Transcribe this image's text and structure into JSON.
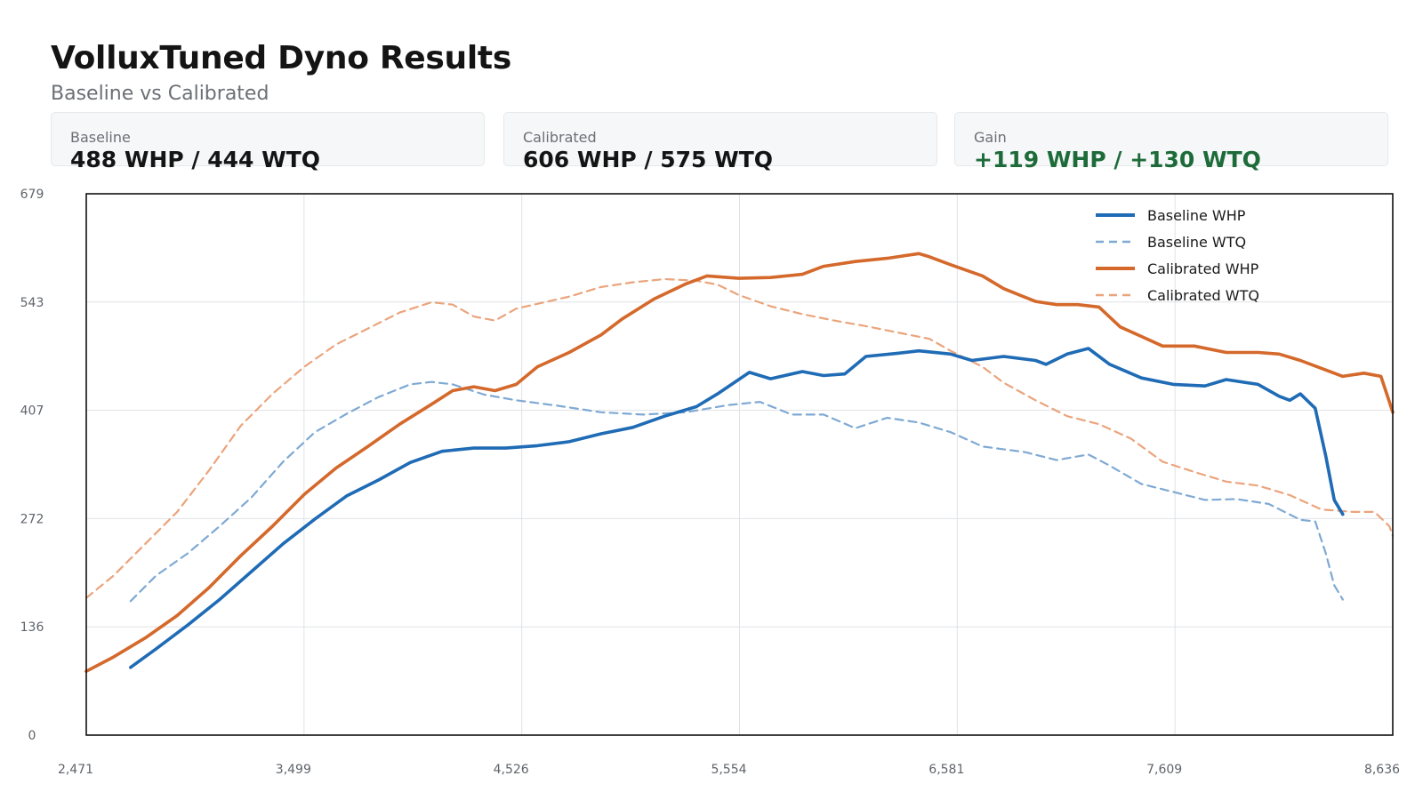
{
  "header": {
    "title": "VolluxTuned Dyno Results",
    "subtitle": "Baseline vs Calibrated"
  },
  "cards": [
    {
      "label": "Baseline",
      "value": "488 WHP / 444 WTQ"
    },
    {
      "label": "Calibrated",
      "value": "606 WHP / 575 WTQ"
    },
    {
      "label": "Gain",
      "value": "+119 WHP / +130 WTQ",
      "color": "#1e6b3a"
    }
  ],
  "chart_data": {
    "type": "line",
    "xlim": [
      2471,
      8636
    ],
    "ylim": [
      0,
      679
    ],
    "x_ticks": [
      "2,471",
      "3,499",
      "4,526",
      "5,554",
      "6,581",
      "7,609",
      "8,636"
    ],
    "y_ticks": [
      "0",
      "136",
      "272",
      "407",
      "543",
      "679"
    ],
    "grid": true,
    "legend_position": "top-right",
    "series": [
      {
        "name": "Baseline WHP",
        "color": "#1f6bb5",
        "dash": "solid",
        "points": [
          [
            2680,
            85
          ],
          [
            2800,
            108
          ],
          [
            2950,
            138
          ],
          [
            3100,
            170
          ],
          [
            3250,
            205
          ],
          [
            3400,
            240
          ],
          [
            3550,
            271
          ],
          [
            3700,
            300
          ],
          [
            3850,
            320
          ],
          [
            4000,
            342
          ],
          [
            4150,
            356
          ],
          [
            4300,
            360
          ],
          [
            4450,
            360
          ],
          [
            4600,
            363
          ],
          [
            4750,
            368
          ],
          [
            4900,
            378
          ],
          [
            5050,
            386
          ],
          [
            5200,
            400
          ],
          [
            5350,
            412
          ],
          [
            5450,
            428
          ],
          [
            5600,
            455
          ],
          [
            5700,
            447
          ],
          [
            5850,
            456
          ],
          [
            5950,
            451
          ],
          [
            6050,
            453
          ],
          [
            6150,
            475
          ],
          [
            6300,
            479
          ],
          [
            6400,
            482
          ],
          [
            6550,
            478
          ],
          [
            6650,
            470
          ],
          [
            6800,
            475
          ],
          [
            6950,
            470
          ],
          [
            7000,
            465
          ],
          [
            7100,
            478
          ],
          [
            7200,
            485
          ],
          [
            7300,
            465
          ],
          [
            7450,
            448
          ],
          [
            7600,
            440
          ],
          [
            7750,
            438
          ],
          [
            7850,
            446
          ],
          [
            8000,
            440
          ],
          [
            8100,
            425
          ],
          [
            8150,
            420
          ],
          [
            8200,
            428
          ],
          [
            8270,
            410
          ],
          [
            8320,
            350
          ],
          [
            8360,
            295
          ],
          [
            8400,
            277
          ]
        ]
      },
      {
        "name": "Baseline WTQ",
        "color": "#7fa9d3",
        "dash": "dashed",
        "points": [
          [
            2680,
            168
          ],
          [
            2800,
            200
          ],
          [
            2950,
            228
          ],
          [
            3100,
            262
          ],
          [
            3250,
            298
          ],
          [
            3400,
            343
          ],
          [
            3550,
            380
          ],
          [
            3700,
            403
          ],
          [
            3850,
            424
          ],
          [
            4000,
            440
          ],
          [
            4100,
            443
          ],
          [
            4200,
            440
          ],
          [
            4350,
            427
          ],
          [
            4500,
            420
          ],
          [
            4700,
            413
          ],
          [
            4900,
            405
          ],
          [
            5100,
            402
          ],
          [
            5300,
            405
          ],
          [
            5500,
            414
          ],
          [
            5650,
            418
          ],
          [
            5800,
            402
          ],
          [
            5950,
            402
          ],
          [
            6100,
            385
          ],
          [
            6250,
            398
          ],
          [
            6400,
            392
          ],
          [
            6550,
            380
          ],
          [
            6700,
            362
          ],
          [
            6900,
            355
          ],
          [
            7050,
            345
          ],
          [
            7200,
            352
          ],
          [
            7300,
            338
          ],
          [
            7450,
            315
          ],
          [
            7600,
            305
          ],
          [
            7750,
            295
          ],
          [
            7900,
            296
          ],
          [
            8050,
            290
          ],
          [
            8200,
            270
          ],
          [
            8270,
            268
          ],
          [
            8320,
            228
          ],
          [
            8360,
            188
          ],
          [
            8400,
            170
          ]
        ]
      },
      {
        "name": "Calibrated WHP",
        "color": "#d4692b",
        "dash": "solid",
        "points": [
          [
            2471,
            80
          ],
          [
            2600,
            98
          ],
          [
            2750,
            122
          ],
          [
            2900,
            150
          ],
          [
            3050,
            185
          ],
          [
            3200,
            225
          ],
          [
            3350,
            262
          ],
          [
            3500,
            302
          ],
          [
            3650,
            335
          ],
          [
            3800,
            362
          ],
          [
            3950,
            390
          ],
          [
            4100,
            415
          ],
          [
            4200,
            432
          ],
          [
            4300,
            437
          ],
          [
            4400,
            432
          ],
          [
            4500,
            440
          ],
          [
            4600,
            462
          ],
          [
            4750,
            480
          ],
          [
            4900,
            502
          ],
          [
            5000,
            522
          ],
          [
            5150,
            547
          ],
          [
            5300,
            566
          ],
          [
            5400,
            576
          ],
          [
            5550,
            573
          ],
          [
            5700,
            574
          ],
          [
            5850,
            578
          ],
          [
            5950,
            588
          ],
          [
            6100,
            594
          ],
          [
            6250,
            598
          ],
          [
            6400,
            604
          ],
          [
            6450,
            600
          ],
          [
            6550,
            590
          ],
          [
            6700,
            576
          ],
          [
            6800,
            560
          ],
          [
            6950,
            544
          ],
          [
            7050,
            540
          ],
          [
            7150,
            540
          ],
          [
            7250,
            537
          ],
          [
            7350,
            512
          ],
          [
            7450,
            500
          ],
          [
            7550,
            488
          ],
          [
            7700,
            488
          ],
          [
            7850,
            480
          ],
          [
            8000,
            480
          ],
          [
            8100,
            478
          ],
          [
            8200,
            470
          ],
          [
            8300,
            460
          ],
          [
            8400,
            450
          ],
          [
            8500,
            454
          ],
          [
            8580,
            450
          ],
          [
            8620,
            418
          ],
          [
            8636,
            405
          ]
        ]
      },
      {
        "name": "Calibrated WTQ",
        "color": "#eaa47c",
        "dash": "dashed",
        "points": [
          [
            2471,
            172
          ],
          [
            2600,
            200
          ],
          [
            2750,
            240
          ],
          [
            2900,
            280
          ],
          [
            3050,
            332
          ],
          [
            3200,
            388
          ],
          [
            3350,
            428
          ],
          [
            3500,
            462
          ],
          [
            3650,
            490
          ],
          [
            3800,
            510
          ],
          [
            3950,
            530
          ],
          [
            4100,
            543
          ],
          [
            4200,
            540
          ],
          [
            4300,
            525
          ],
          [
            4400,
            520
          ],
          [
            4500,
            535
          ],
          [
            4600,
            541
          ],
          [
            4750,
            550
          ],
          [
            4900,
            562
          ],
          [
            5050,
            568
          ],
          [
            5200,
            572
          ],
          [
            5350,
            570
          ],
          [
            5450,
            565
          ],
          [
            5550,
            552
          ],
          [
            5700,
            538
          ],
          [
            5850,
            528
          ],
          [
            6000,
            520
          ],
          [
            6150,
            513
          ],
          [
            6300,
            505
          ],
          [
            6450,
            497
          ],
          [
            6550,
            482
          ],
          [
            6700,
            462
          ],
          [
            6800,
            442
          ],
          [
            6950,
            420
          ],
          [
            7100,
            400
          ],
          [
            7250,
            390
          ],
          [
            7400,
            372
          ],
          [
            7550,
            343
          ],
          [
            7700,
            330
          ],
          [
            7850,
            318
          ],
          [
            8000,
            313
          ],
          [
            8150,
            301
          ],
          [
            8300,
            283
          ],
          [
            8450,
            280
          ],
          [
            8550,
            280
          ],
          [
            8620,
            262
          ],
          [
            8636,
            250
          ]
        ]
      }
    ]
  }
}
